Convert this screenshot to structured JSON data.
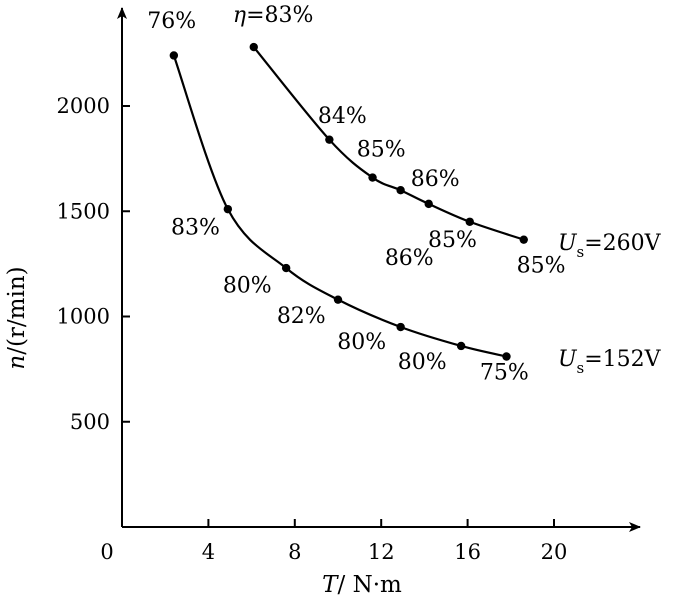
{
  "chart_data": {
    "type": "line",
    "xlabel_italic": "T",
    "xlabel_rest": "/ N·m",
    "ylabel_italic": "n",
    "ylabel_rest": "/(r/min)",
    "xlim": [
      0,
      23.5
    ],
    "ylim": [
      0,
      2450
    ],
    "xticks": [
      0,
      4,
      8,
      12,
      16,
      20
    ],
    "yticks": [
      500,
      1000,
      1500,
      2000
    ],
    "grid": false,
    "series": [
      {
        "name": "U_s=260V",
        "label_main": "U",
        "label_sub": "s",
        "label_rest": "=260V",
        "points": [
          {
            "x": 6.1,
            "y": 2280
          },
          {
            "x": 9.6,
            "y": 1840
          },
          {
            "x": 11.6,
            "y": 1660
          },
          {
            "x": 12.9,
            "y": 1600
          },
          {
            "x": 14.2,
            "y": 1535
          },
          {
            "x": 16.1,
            "y": 1450
          },
          {
            "x": 18.6,
            "y": 1365
          }
        ],
        "efficiency_labels": [
          {
            "text": "η=83%",
            "x": 7.0,
            "y": 2400
          },
          {
            "text": "84%",
            "x": 10.2,
            "y": 1920
          },
          {
            "text": "85%",
            "x": 12.0,
            "y": 1760
          },
          {
            "text": "86%",
            "x": 13.3,
            "y": 1245,
            "text_pos": "below"
          },
          {
            "text": "86%",
            "x": 14.5,
            "y": 1620
          },
          {
            "text": "85%",
            "x": 15.3,
            "y": 1330,
            "text_pos": "below"
          },
          {
            "text": "85%",
            "x": 19.4,
            "y": 1210
          }
        ]
      },
      {
        "name": "U_s=152V",
        "label_main": "U",
        "label_sub": "s",
        "label_rest": "=152V",
        "points": [
          {
            "x": 2.4,
            "y": 2240
          },
          {
            "x": 4.9,
            "y": 1510
          },
          {
            "x": 7.6,
            "y": 1230
          },
          {
            "x": 10.0,
            "y": 1080
          },
          {
            "x": 12.9,
            "y": 950
          },
          {
            "x": 15.7,
            "y": 860
          },
          {
            "x": 17.8,
            "y": 810
          }
        ],
        "efficiency_labels": [
          {
            "text": "76%",
            "x": 2.3,
            "y": 2370
          },
          {
            "text": "83%",
            "x": 3.4,
            "y": 1390
          },
          {
            "text": "80%",
            "x": 5.8,
            "y": 1115
          },
          {
            "text": "82%",
            "x": 8.3,
            "y": 970
          },
          {
            "text": "80%",
            "x": 11.1,
            "y": 845
          },
          {
            "text": "80%",
            "x": 13.9,
            "y": 750
          },
          {
            "text": "75%",
            "x": 17.7,
            "y": 700
          }
        ]
      }
    ]
  }
}
